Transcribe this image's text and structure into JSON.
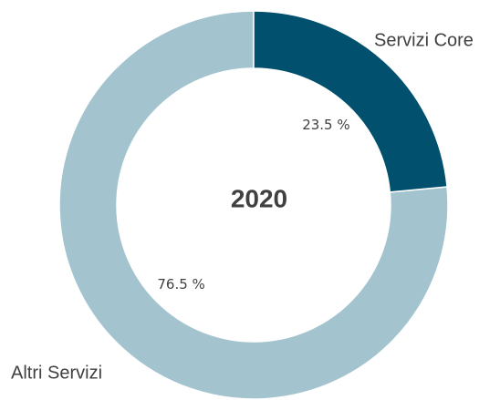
{
  "chart_data": {
    "type": "pie",
    "donut": true,
    "center_label": "2020",
    "categories": [
      "Servizi Core",
      "Altri Servizi"
    ],
    "values": [
      23.5,
      76.5
    ],
    "value_labels": [
      "23.5 %",
      "76.5 %"
    ],
    "colors": [
      "#00506e",
      "#a3c4cf"
    ]
  }
}
